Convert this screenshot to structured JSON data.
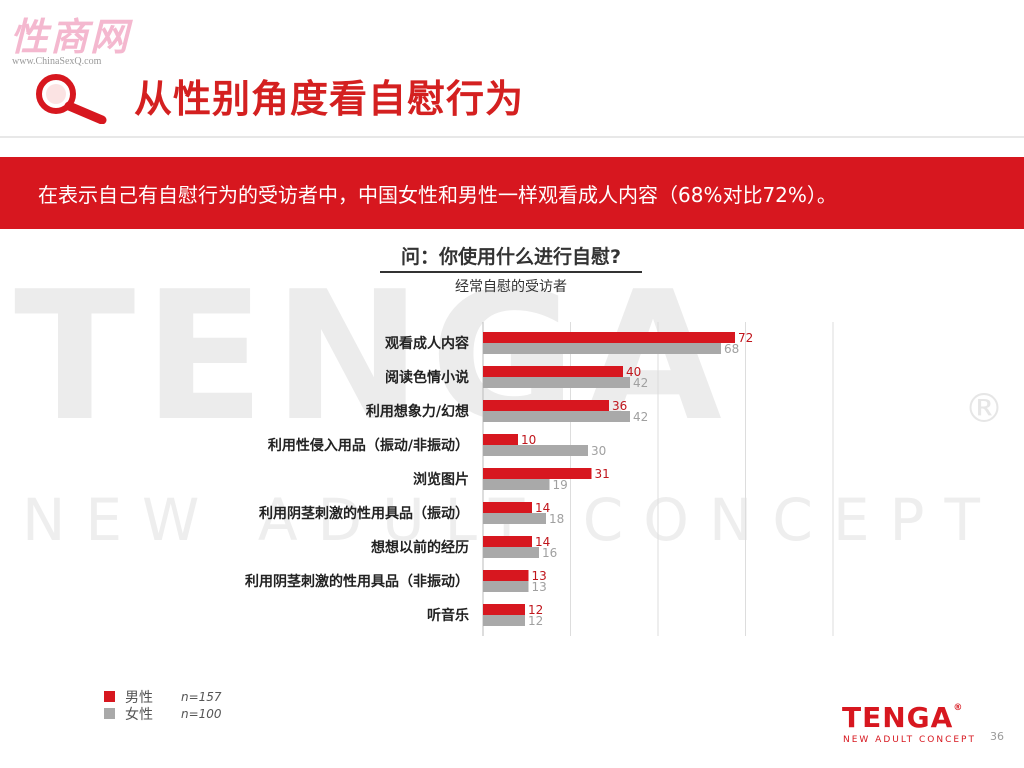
{
  "watermark": {
    "site": "性商网",
    "url": "www.ChinaSexQ.com"
  },
  "header": {
    "title": "从性别角度看自慰行为",
    "icon": "magnifier-icon"
  },
  "banner": {
    "text": "在表示自己有自慰行为的受访者中，中国女性和男性一样观看成人内容（68%对比72%）。"
  },
  "background": {
    "brand": "TENGA",
    "registered": "®",
    "tagline": "NEW ADULT CONCEPT"
  },
  "chart": {
    "question": "问：你使用什么进行自慰?",
    "subtitle": "经常自慰的受访者"
  },
  "chart_data": {
    "type": "bar",
    "orientation": "horizontal",
    "categories": [
      "观看成人内容",
      "阅读色情小说",
      "利用想象力/幻想",
      "利用性侵入用品（振动/非振动）",
      "浏览图片",
      "利用阴茎刺激的性用具品（振动）",
      "想想以前的经历",
      "利用阴茎刺激的性用具品（非振动）",
      "听音乐"
    ],
    "series": [
      {
        "name": "男性",
        "color": "#d7171f",
        "label_color": "#c0161c",
        "values": [
          72,
          40,
          36,
          10,
          31,
          14,
          14,
          13,
          12
        ]
      },
      {
        "name": "女性",
        "color": "#a9a9a9",
        "label_color": "#a0a0a0",
        "values": [
          68,
          42,
          42,
          30,
          19,
          18,
          16,
          13,
          12
        ]
      }
    ],
    "xlim": [
      0,
      100
    ],
    "grid": true,
    "legend": "bottom-left"
  },
  "legend": [
    {
      "name": "男性",
      "n": "n=157",
      "color": "#d7171f"
    },
    {
      "name": "女性",
      "n": "n=100",
      "color": "#a9a9a9"
    }
  ],
  "footer": {
    "logo": "TENGA",
    "logo_mark": "®",
    "tagline": "NEW ADULT CONCEPT",
    "page": "36"
  }
}
